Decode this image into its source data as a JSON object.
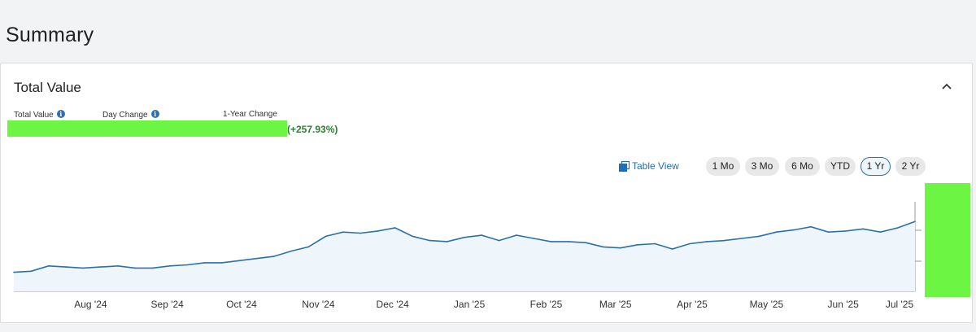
{
  "page": {
    "title": "Summary"
  },
  "card": {
    "title": "Total Value",
    "metrics": {
      "total_value_label": "Total Value",
      "day_change_label": "Day Change",
      "year_change_label": "1-Year Change",
      "year_change_pct": "(+257.93%)"
    },
    "table_view_label": "Table View",
    "ranges": [
      {
        "label": "1 Mo",
        "active": false
      },
      {
        "label": "3 Mo",
        "active": false
      },
      {
        "label": "6 Mo",
        "active": false
      },
      {
        "label": "YTD",
        "active": false
      },
      {
        "label": "1 Yr",
        "active": true
      },
      {
        "label": "2 Yr",
        "active": false
      }
    ]
  },
  "colors": {
    "line": "#2c6fad",
    "fill": "#eef6fc",
    "redaction": "#6cf542",
    "positive": "#2e7d32",
    "accent": "#1f6fb2"
  },
  "icons": [
    "info-icon",
    "chevron-up-icon",
    "table-view-icon"
  ],
  "chart_data": {
    "type": "area",
    "title": "",
    "xlabel": "",
    "ylabel": "",
    "x_tick_labels": [
      "Aug '24",
      "Sep '24",
      "Oct '24",
      "Nov '24",
      "Dec '24",
      "Jan '25",
      "Feb '25",
      "Mar '25",
      "Apr '25",
      "May '25",
      "Jun '25",
      "Jul '25"
    ],
    "y_tick_labels_visible": false,
    "ylim": [
      0,
      100
    ],
    "series": [
      {
        "name": "",
        "x": [
          "2024-07-15",
          "2024-07-22",
          "2024-07-29",
          "2024-08-05",
          "2024-08-12",
          "2024-08-19",
          "2024-08-26",
          "2024-09-02",
          "2024-09-09",
          "2024-09-16",
          "2024-09-23",
          "2024-09-30",
          "2024-10-07",
          "2024-10-14",
          "2024-10-21",
          "2024-10-28",
          "2024-11-04",
          "2024-11-11",
          "2024-11-18",
          "2024-11-25",
          "2024-12-02",
          "2024-12-09",
          "2024-12-16",
          "2024-12-23",
          "2024-12-30",
          "2025-01-06",
          "2025-01-13",
          "2025-01-20",
          "2025-01-27",
          "2025-02-03",
          "2025-02-10",
          "2025-02-17",
          "2025-02-24",
          "2025-03-03",
          "2025-03-10",
          "2025-03-17",
          "2025-03-24",
          "2025-03-31",
          "2025-04-07",
          "2025-04-14",
          "2025-04-21",
          "2025-04-28",
          "2025-05-05",
          "2025-05-12",
          "2025-05-19",
          "2025-05-26",
          "2025-06-02",
          "2025-06-09",
          "2025-06-16",
          "2025-06-23",
          "2025-06-30",
          "2025-07-07",
          "2025-07-14"
        ],
        "values": [
          18,
          19,
          24,
          23,
          22,
          23,
          24,
          22,
          22,
          24,
          25,
          27,
          27,
          29,
          31,
          33,
          38,
          42,
          52,
          56,
          55,
          57,
          60,
          52,
          48,
          47,
          51,
          53,
          48,
          53,
          50,
          47,
          47,
          46,
          42,
          41,
          44,
          45,
          40,
          45,
          47,
          48,
          50,
          52,
          56,
          58,
          61,
          56,
          57,
          59,
          56,
          60,
          66
        ]
      }
    ]
  }
}
